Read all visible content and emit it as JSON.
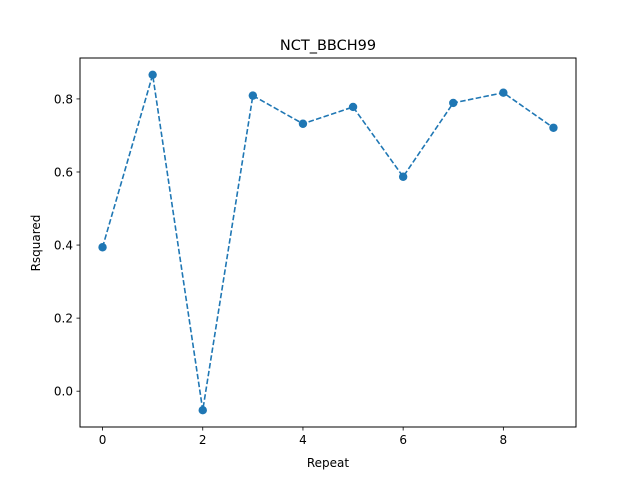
{
  "chart_data": {
    "type": "line",
    "title": "NCT_BBCH99",
    "xlabel": "Repeat",
    "ylabel": "Rsquared",
    "xlim": [
      -0.45,
      9.45
    ],
    "ylim": [
      -0.098,
      0.912
    ],
    "xticks": [
      0,
      2,
      4,
      6,
      8
    ],
    "xtick_labels": [
      "0",
      "2",
      "4",
      "6",
      "8"
    ],
    "yticks": [
      0.0,
      0.2,
      0.4,
      0.6,
      0.8
    ],
    "ytick_labels": [
      "0.0",
      "0.2",
      "0.4",
      "0.6",
      "0.8"
    ],
    "grid": false,
    "legend": "none",
    "series": [
      {
        "line_style": "dashed",
        "marker": "circle",
        "color": "#1f77b4",
        "x": [
          0,
          1,
          2,
          3,
          4,
          5,
          6,
          7,
          8,
          9
        ],
        "y": [
          0.394,
          0.866,
          -0.052,
          0.809,
          0.732,
          0.778,
          0.587,
          0.789,
          0.817,
          0.721
        ]
      }
    ]
  }
}
